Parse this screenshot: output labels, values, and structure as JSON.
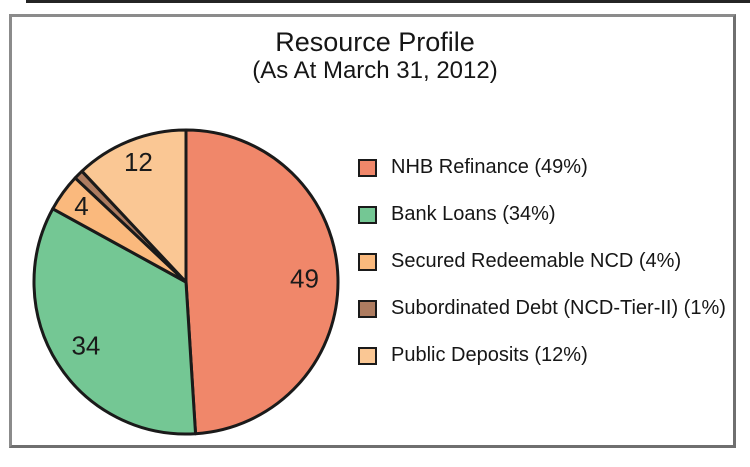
{
  "title": "Resource Profile",
  "subtitle": "(As At March 31, 2012)",
  "frame": {
    "border_color": "#7d7d7d",
    "scan_edge_color": "#242424"
  },
  "chart_data": {
    "type": "pie",
    "title": "Resource Profile",
    "subtitle": "(As At March 31, 2012)",
    "start_angle_deg": 0,
    "direction": "clockwise",
    "legend_position": "right",
    "outline_color": "#1a1a1a",
    "slices": [
      {
        "name": "NHB Refinance",
        "value": 49,
        "pct_label": "49",
        "legend_label": "NHB Refinance (49%)",
        "color": "#F0876A"
      },
      {
        "name": "Bank Loans",
        "value": 34,
        "pct_label": "34",
        "legend_label": "Bank Loans (34%)",
        "color": "#74C794"
      },
      {
        "name": "Secured Redeemable NCD",
        "value": 4,
        "pct_label": "4",
        "legend_label": "Secured Redeemable NCD (4%)",
        "color": "#FAB97D"
      },
      {
        "name": "Subordinated Debt (NCD-Tier-II)",
        "value": 1,
        "pct_label": "",
        "legend_label": "Subordinated Debt (NCD-Tier-II) (1%)",
        "color": "#AE7C60"
      },
      {
        "name": "Public Deposits",
        "value": 12,
        "pct_label": "12",
        "legend_label": "Public Deposits (12%)",
        "color": "#FAC794"
      }
    ]
  }
}
